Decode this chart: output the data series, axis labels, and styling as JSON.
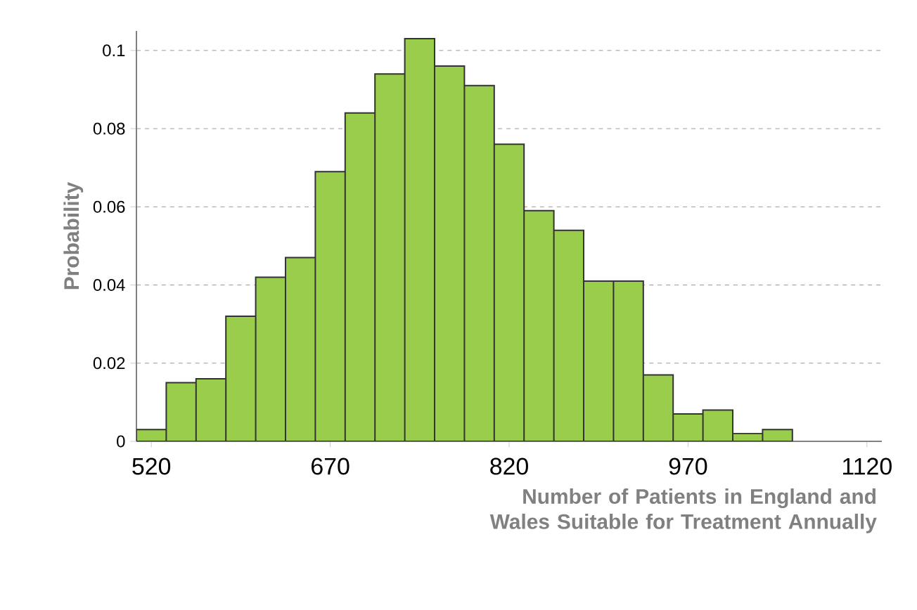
{
  "chart_data": {
    "type": "histogram",
    "bins": [
      507.5,
      532.5,
      557.5,
      582.5,
      607.5,
      632.5,
      657.5,
      682.5,
      707.5,
      732.5,
      757.5,
      782.5,
      807.5,
      832.5,
      857.5,
      882.5,
      907.5,
      932.5,
      957.5,
      982.5,
      1007.5,
      1032.5,
      1057.5
    ],
    "values": [
      0.003,
      0.015,
      0.016,
      0.032,
      0.042,
      0.047,
      0.069,
      0.084,
      0.094,
      0.103,
      0.096,
      0.091,
      0.076,
      0.059,
      0.054,
      0.041,
      0.041,
      0.017,
      0.007,
      0.008,
      0.002,
      0.003
    ],
    "color": "#9acd4c",
    "xlim": [
      507.5,
      1132.5
    ],
    "xticks": [
      520,
      670,
      820,
      970,
      1120
    ],
    "ylim": [
      0,
      0.105
    ],
    "yticks": [
      0,
      0.02,
      0.04,
      0.06,
      0.08,
      0.1
    ],
    "ylabel": "Probability",
    "xlabel": "Number of Patients in England and Wales Suitable for Treatment Annually",
    "grid": "y"
  }
}
